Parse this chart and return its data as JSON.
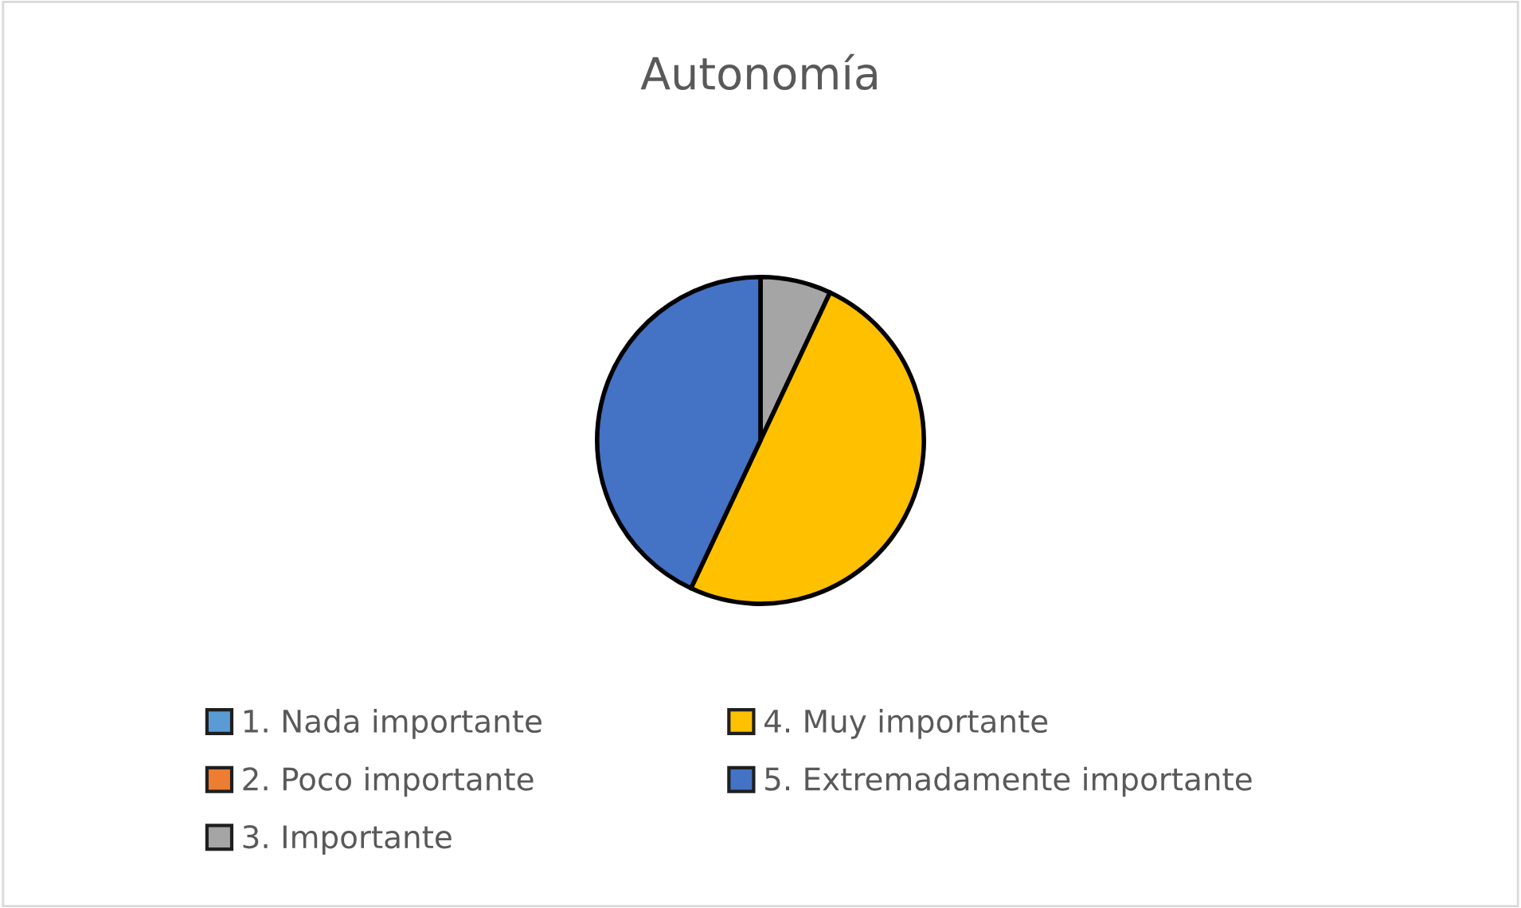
{
  "chart_data": {
    "type": "pie",
    "title": "Autonomía",
    "categories": [
      "1. Nada importante",
      "2. Poco importante",
      "3. Importante",
      "4. Muy importante",
      "5. Extremadamente importante"
    ],
    "values": [
      0,
      0,
      7,
      50,
      43
    ],
    "colors": [
      "#5b9bd5",
      "#ed7d31",
      "#a5a5a5",
      "#ffc000",
      "#4472c4"
    ],
    "legend": "bottom"
  }
}
